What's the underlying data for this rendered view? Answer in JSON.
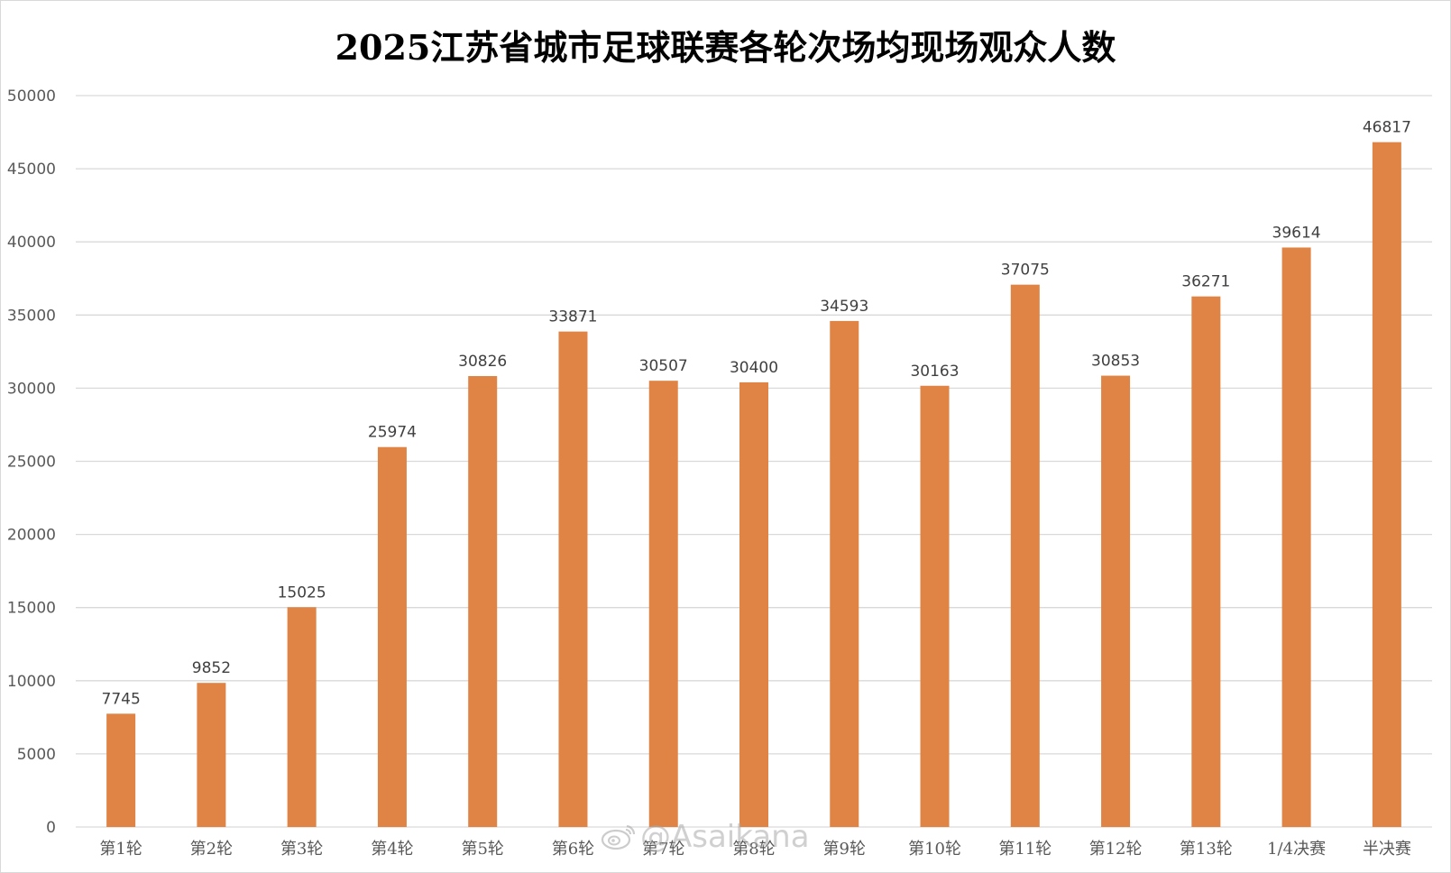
{
  "chart_data": {
    "type": "bar",
    "title": "2025江苏省城市足球联赛各轮次场均现场观众人数",
    "xlabel": "",
    "ylabel": "",
    "ylim": [
      0,
      50000
    ],
    "yticks": [
      0,
      5000,
      10000,
      15000,
      20000,
      25000,
      30000,
      35000,
      40000,
      45000,
      50000
    ],
    "grid": true,
    "legend": "none",
    "categories": [
      "第1轮",
      "第2轮",
      "第3轮",
      "第4轮",
      "第5轮",
      "第6轮",
      "第7轮",
      "第8轮",
      "第9轮",
      "第10轮",
      "第11轮",
      "第12轮",
      "第13轮",
      "1/4决赛",
      "半决赛"
    ],
    "values": [
      7745,
      9852,
      15025,
      25974,
      30826,
      33871,
      30507,
      30400,
      34593,
      30163,
      37075,
      30853,
      36271,
      39614,
      46817
    ],
    "bar_color": "#df8444",
    "data_labels": true
  },
  "watermark": {
    "icon": "weibo-icon",
    "text": "@Asaikana"
  }
}
